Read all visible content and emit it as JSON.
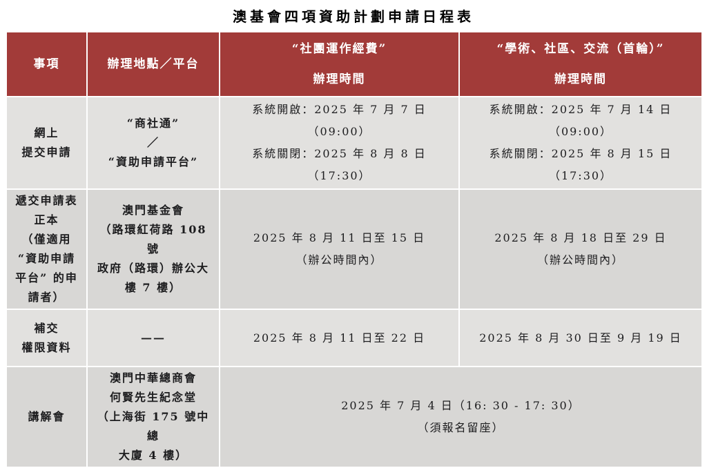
{
  "title": "澳基會四項資助計劃申請日程表",
  "colors": {
    "header_bg": "#A23B39",
    "header_text": "#FFFFFF",
    "row_light": "#E2E1DF",
    "row_dark": "#D8D7D5",
    "body_text": "#1C1C1E"
  },
  "table": {
    "headers": {
      "item": "事項",
      "location": "辦理地點／平台",
      "association_funds": "“社團運作經費”\n辦理時間",
      "academic_funds": "“學術、社區、交流（首輪）”\n辦理時間"
    },
    "rows": [
      {
        "item": "網上\n提交申請",
        "location": "“商社通”\n／\n“資助申請平台”",
        "association_time": "系統開啟：2025 年 7 月 7 日（09:00）\n系統關閉：2025 年 8 月 8 日（17:30）",
        "academic_time": "系統開啟：2025 年 7 月 14 日（09:00）\n系統關閉：2025 年 8 月 15 日（17:30）"
      },
      {
        "item": "遞交申請表\n正本\n（僅適用\n“資助申請\n平台” 的申\n請者）",
        "location": "澳門基金會\n（路環紅荷路 108 號\n政府（路環）辦公大\n樓 7 樓）",
        "association_time": "2025 年 8 月 11 日至 15 日\n（辦公時間內）",
        "academic_time": "2025 年 8 月 18 日至 29 日\n（辦公時間內）"
      },
      {
        "item": "補交\n權限資料",
        "location": "——",
        "association_time": "2025 年 8 月 11 日至 22 日",
        "academic_time": "2025 年 8 月 30 日至 9 月 19 日"
      },
      {
        "item": "講解會",
        "location": "澳門中華總商會\n何賢先生紀念堂\n（上海街 175 號中總\n大廈 4 樓）",
        "merged_time": "2025 年 7 月 4 日（16: 30 - 17: 30）\n（須報名留座）"
      }
    ]
  }
}
